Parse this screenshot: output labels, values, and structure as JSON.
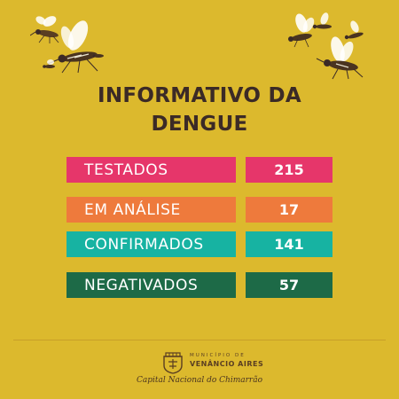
{
  "title": {
    "line1": "INFORMATIVO DA",
    "line2": "DENGUE"
  },
  "stats": [
    {
      "label": "TESTADOS",
      "value": "215",
      "label_color": "#e6366a",
      "value_color": "#e6366a"
    },
    {
      "label": "EM ANÁLISE",
      "value": "17",
      "label_color": "#ee7a3c",
      "value_color": "#ee7a3c"
    },
    {
      "label": "CONFIRMADOS",
      "value": "141",
      "label_color": "#17b3a2",
      "value_color": "#17b3a2"
    },
    {
      "label": "NEGATIVADOS",
      "value": "57",
      "label_color": "#1d6a47",
      "value_color": "#1d6a47"
    }
  ],
  "footer": {
    "municipio": "MUNICÍPIO DE",
    "city": "VENÂNCIO AIRES",
    "tagline": "Capital Nacional do Chimarrão"
  },
  "colors": {
    "background": "#dcb92d",
    "title_text": "#3b2a26"
  },
  "decorations": [
    "mosquito-icon",
    "mosquito-icon",
    "mosquito-icon",
    "mosquito-icon",
    "mosquito-icon",
    "mosquito-icon",
    "mosquito-icon",
    "mosquito-icon"
  ]
}
